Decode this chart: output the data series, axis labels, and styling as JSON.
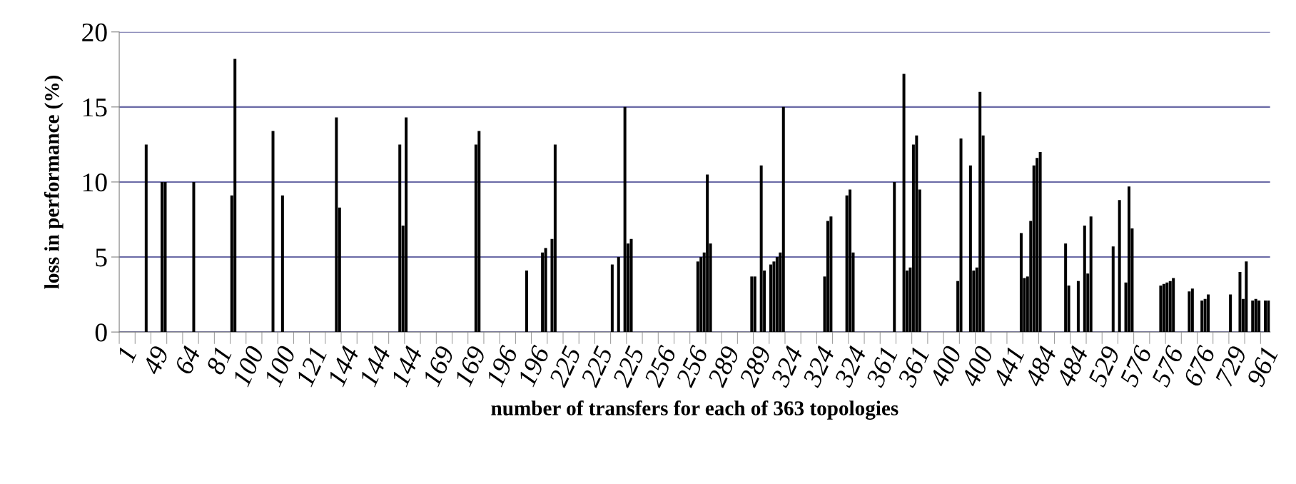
{
  "chart_data": {
    "type": "bar",
    "xlabel": "number of transfers for each of 363 topologies",
    "ylabel": "loss in performance (%)",
    "color": "#000000",
    "grid": "y",
    "ylim": [
      0,
      20
    ],
    "yticks": [
      0,
      5,
      10,
      15,
      20
    ],
    "categories": [
      "1",
      null,
      null,
      null,
      null,
      null,
      null,
      null,
      null,
      null,
      "49",
      null,
      null,
      null,
      null,
      null,
      null,
      null,
      null,
      null,
      "64",
      null,
      null,
      null,
      null,
      null,
      null,
      null,
      null,
      null,
      "81",
      null,
      null,
      null,
      null,
      null,
      null,
      null,
      null,
      null,
      "100",
      null,
      null,
      null,
      null,
      null,
      null,
      null,
      null,
      null,
      "100",
      null,
      null,
      null,
      null,
      null,
      null,
      null,
      null,
      null,
      "121",
      null,
      null,
      null,
      null,
      null,
      null,
      null,
      null,
      null,
      "144",
      null,
      null,
      null,
      null,
      null,
      null,
      null,
      null,
      null,
      "144",
      null,
      null,
      null,
      null,
      null,
      null,
      null,
      null,
      null,
      "144",
      null,
      null,
      null,
      null,
      null,
      null,
      null,
      null,
      null,
      "169",
      null,
      null,
      null,
      null,
      null,
      null,
      null,
      null,
      null,
      "169",
      null,
      null,
      null,
      null,
      null,
      null,
      null,
      null,
      null,
      "196",
      null,
      null,
      null,
      null,
      null,
      null,
      null,
      null,
      null,
      "196",
      null,
      null,
      null,
      null,
      null,
      null,
      null,
      null,
      null,
      "225",
      null,
      null,
      null,
      null,
      null,
      null,
      null,
      null,
      null,
      "225",
      null,
      null,
      null,
      null,
      null,
      null,
      null,
      null,
      null,
      "225",
      null,
      null,
      null,
      null,
      null,
      null,
      null,
      null,
      null,
      "256",
      null,
      null,
      null,
      null,
      null,
      null,
      null,
      null,
      null,
      "256",
      null,
      null,
      null,
      null,
      null,
      null,
      null,
      null,
      null,
      "289",
      null,
      null,
      null,
      null,
      null,
      null,
      null,
      null,
      null,
      "289",
      null,
      null,
      null,
      null,
      null,
      null,
      null,
      null,
      null,
      "324",
      null,
      null,
      null,
      null,
      null,
      null,
      null,
      null,
      null,
      "324",
      null,
      null,
      null,
      null,
      null,
      null,
      null,
      null,
      null,
      "324",
      null,
      null,
      null,
      null,
      null,
      null,
      null,
      null,
      null,
      "361",
      null,
      null,
      null,
      null,
      null,
      null,
      null,
      null,
      null,
      "361",
      null,
      null,
      null,
      null,
      null,
      null,
      null,
      null,
      null,
      "400",
      null,
      null,
      null,
      null,
      null,
      null,
      null,
      null,
      null,
      "400",
      null,
      null,
      null,
      null,
      null,
      null,
      null,
      null,
      null,
      "441",
      null,
      null,
      null,
      null,
      null,
      null,
      null,
      null,
      null,
      "484",
      null,
      null,
      null,
      null,
      null,
      null,
      null,
      null,
      null,
      "484",
      null,
      null,
      null,
      null,
      null,
      null,
      null,
      null,
      null,
      "529",
      null,
      null,
      null,
      null,
      null,
      null,
      null,
      null,
      null,
      "576",
      null,
      null,
      null,
      null,
      null,
      null,
      null,
      null,
      null,
      "576",
      null,
      null,
      null,
      null,
      null,
      null,
      null,
      null,
      null,
      "676",
      null,
      null,
      null,
      null,
      null,
      null,
      null,
      null,
      null,
      "729",
      null,
      null,
      null,
      null,
      null,
      null,
      null,
      null,
      null,
      "961",
      null,
      null
    ],
    "values": [
      0,
      0,
      0,
      0,
      0,
      0,
      0,
      0,
      12.5,
      0,
      0,
      0,
      0,
      10,
      10,
      0,
      0,
      0,
      0,
      0,
      0,
      0,
      0,
      10,
      0,
      0,
      0,
      0,
      0,
      0,
      0,
      0,
      0,
      0,
      0,
      9.1,
      18.2,
      0,
      0,
      0,
      0,
      0,
      0,
      0,
      0,
      0,
      0,
      0,
      13.4,
      0,
      0,
      9.1,
      0,
      0,
      0,
      0,
      0,
      0,
      0,
      0,
      0,
      0,
      0,
      0,
      0,
      0,
      0,
      0,
      14.3,
      8.3,
      0,
      0,
      0,
      0,
      0,
      0,
      0,
      0,
      0,
      0,
      0,
      0,
      0,
      0,
      0,
      0,
      0,
      0,
      12.5,
      7.1,
      14.3,
      0,
      0,
      0,
      0,
      0,
      0,
      0,
      0,
      0,
      0,
      0,
      0,
      0,
      0,
      0,
      0,
      0,
      0,
      0,
      0,
      0,
      12.5,
      13.4,
      0,
      0,
      0,
      0,
      0,
      0,
      0,
      0,
      0,
      0,
      0,
      0,
      0,
      0,
      4.1,
      0,
      0,
      0,
      0,
      5.3,
      5.6,
      0,
      6.2,
      12.5,
      0,
      0,
      0,
      0,
      0,
      0,
      0,
      0,
      0,
      0,
      0,
      0,
      0,
      0,
      0,
      0,
      0,
      4.5,
      0,
      5.0,
      0,
      15.0,
      5.9,
      6.2,
      0,
      0,
      0,
      0,
      0,
      0,
      0,
      0,
      0,
      0,
      0,
      0,
      0,
      0,
      0,
      0,
      0,
      0,
      0,
      0,
      4.7,
      5.0,
      5.3,
      10.5,
      5.9,
      0,
      0,
      0,
      0,
      0,
      0,
      0,
      0,
      0,
      0,
      0,
      0,
      3.7,
      3.7,
      0,
      11.1,
      4.1,
      0,
      4.5,
      4.7,
      5.0,
      5.3,
      15.0,
      0,
      0,
      0,
      0,
      0,
      0,
      0,
      0,
      0,
      0,
      0,
      0,
      3.7,
      7.4,
      7.7,
      0,
      0,
      0,
      0,
      9.1,
      9.5,
      5.3,
      0,
      0,
      0,
      0,
      0,
      0,
      0,
      0,
      0,
      0,
      0,
      0,
      10,
      0,
      0,
      17.2,
      4.1,
      4.3,
      12.5,
      13.1,
      9.5,
      0,
      0,
      0,
      0,
      0,
      0,
      0,
      0,
      0,
      0,
      0,
      3.4,
      12.9,
      0,
      0,
      11.1,
      4.1,
      4.3,
      16.0,
      13.1,
      0,
      0,
      0,
      0,
      0,
      0,
      0,
      0,
      0,
      0,
      0,
      6.6,
      3.6,
      3.7,
      7.4,
      11.1,
      11.6,
      12.0,
      0,
      0,
      0,
      0,
      0,
      0,
      0,
      5.9,
      3.1,
      0,
      0,
      3.4,
      0,
      7.1,
      3.9,
      7.7,
      0,
      0,
      0,
      0,
      0,
      0,
      5.7,
      0,
      8.8,
      0,
      3.3,
      9.7,
      6.9,
      0,
      0,
      0,
      0,
      0,
      0,
      0,
      0,
      3.1,
      3.2,
      3.3,
      3.4,
      3.6,
      0,
      0,
      0,
      0,
      2.7,
      2.9,
      0,
      0,
      2.1,
      2.2,
      2.5,
      0,
      0,
      0,
      0,
      0,
      0,
      2.5,
      0,
      0,
      4.0,
      2.2,
      4.7,
      0,
      2.1,
      2.2,
      2.1,
      0,
      2.1,
      2.1
    ]
  }
}
